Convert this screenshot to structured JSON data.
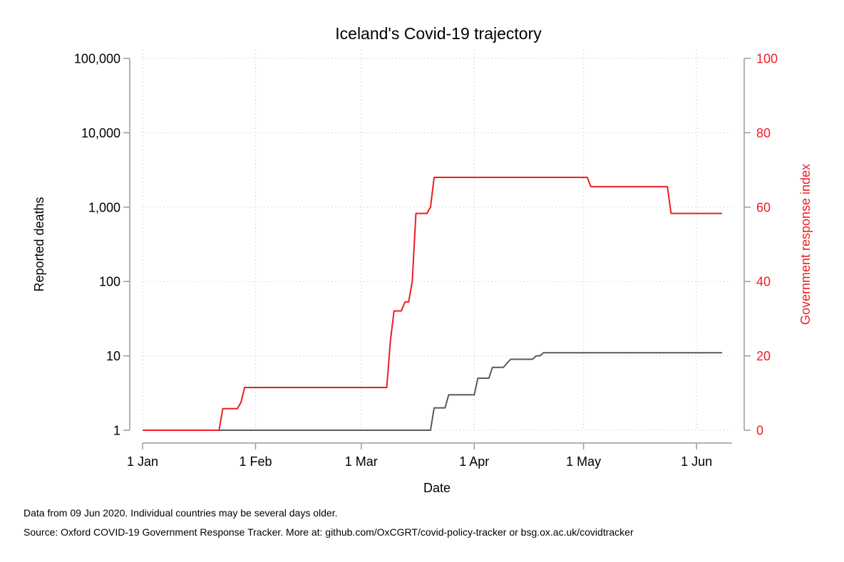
{
  "chart_data": {
    "type": "line",
    "title": "Iceland's Covid-19 trajectory",
    "xlabel": "Date",
    "ylabel_left": "Reported deaths",
    "ylabel_right": "Government response index",
    "x_ticks": [
      {
        "date": "2020-01-01",
        "label": "1 Jan"
      },
      {
        "date": "2020-02-01",
        "label": "1 Feb"
      },
      {
        "date": "2020-03-01",
        "label": "1 Mar"
      },
      {
        "date": "2020-04-01",
        "label": "1 Apr"
      },
      {
        "date": "2020-05-01",
        "label": "1 May"
      },
      {
        "date": "2020-06-01",
        "label": "1 Jun"
      }
    ],
    "x_range": [
      "2020-01-01",
      "2020-06-08"
    ],
    "y_left": {
      "scale": "log",
      "range": [
        1,
        100000
      ],
      "ticks": [
        {
          "value": 1,
          "label": "1"
        },
        {
          "value": 10,
          "label": "10"
        },
        {
          "value": 100,
          "label": "100"
        },
        {
          "value": 1000,
          "label": "1,000"
        },
        {
          "value": 10000,
          "label": "10,000"
        },
        {
          "value": 100000,
          "label": "100,000"
        }
      ]
    },
    "y_right": {
      "scale": "linear",
      "range": [
        0,
        100
      ],
      "ticks": [
        {
          "value": 0,
          "label": "0"
        },
        {
          "value": 20,
          "label": "20"
        },
        {
          "value": 40,
          "label": "40"
        },
        {
          "value": 60,
          "label": "60"
        },
        {
          "value": 80,
          "label": "80"
        },
        {
          "value": 100,
          "label": "100"
        }
      ]
    },
    "grid": true,
    "series": [
      {
        "axis": "left",
        "color": "#5a5a5a",
        "points": [
          [
            "2020-01-01",
            1
          ],
          [
            "2020-03-20",
            1
          ],
          [
            "2020-03-21",
            2
          ],
          [
            "2020-03-23",
            2
          ],
          [
            "2020-03-24",
            2
          ],
          [
            "2020-03-25",
            3
          ],
          [
            "2020-03-31",
            3
          ],
          [
            "2020-04-01",
            3
          ],
          [
            "2020-04-02",
            5
          ],
          [
            "2020-04-05",
            5
          ],
          [
            "2020-04-06",
            7
          ],
          [
            "2020-04-09",
            7
          ],
          [
            "2020-04-10",
            8
          ],
          [
            "2020-04-11",
            9
          ],
          [
            "2020-04-17",
            9
          ],
          [
            "2020-04-18",
            10
          ],
          [
            "2020-04-19",
            10
          ],
          [
            "2020-04-20",
            11
          ],
          [
            "2020-06-08",
            11
          ]
        ]
      },
      {
        "axis": "right",
        "color": "#ee1c25",
        "points": [
          [
            "2020-01-01",
            0
          ],
          [
            "2020-01-22",
            0
          ],
          [
            "2020-01-23",
            5.8
          ],
          [
            "2020-01-27",
            5.8
          ],
          [
            "2020-01-28",
            7.5
          ],
          [
            "2020-01-29",
            11.5
          ],
          [
            "2020-03-08",
            11.5
          ],
          [
            "2020-03-09",
            24
          ],
          [
            "2020-03-10",
            32.1
          ],
          [
            "2020-03-12",
            32.1
          ],
          [
            "2020-03-13",
            34.5
          ],
          [
            "2020-03-14",
            34.5
          ],
          [
            "2020-03-15",
            40
          ],
          [
            "2020-03-16",
            58.3
          ],
          [
            "2020-03-19",
            58.3
          ],
          [
            "2020-03-20",
            60
          ],
          [
            "2020-03-21",
            68
          ],
          [
            "2020-05-02",
            68
          ],
          [
            "2020-05-03",
            65.5
          ],
          [
            "2020-05-24",
            65.5
          ],
          [
            "2020-05-25",
            58.3
          ],
          [
            "2020-06-08",
            58.3
          ]
        ]
      }
    ]
  },
  "notes": {
    "data_note": "Data from 09 Jun 2020. Individual countries may be several days older.",
    "source_note": "Source: Oxford COVID-19 Government Response Tracker. More at: github.com/OxCGRT/covid-policy-tracker or bsg.ox.ac.uk/covidtracker"
  }
}
